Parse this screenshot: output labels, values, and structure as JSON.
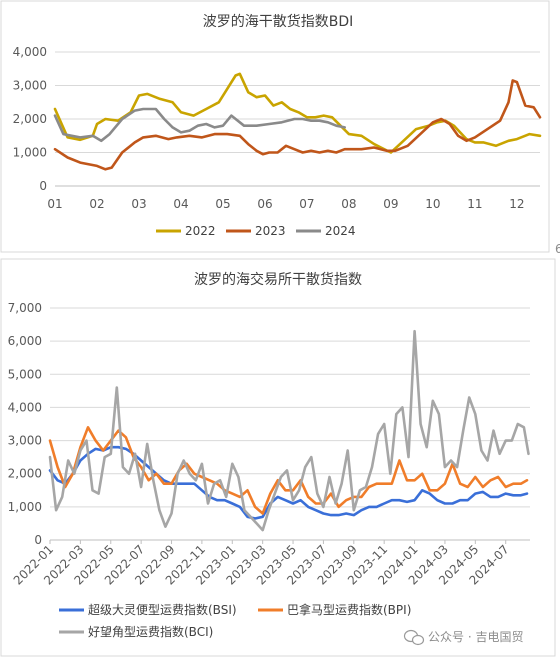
{
  "chart_data": [
    {
      "type": "line",
      "title": "波罗的海干散货指数BDI",
      "ylim": [
        0,
        4000
      ],
      "yticks": [
        "0",
        "1,000",
        "2,000",
        "3,000",
        "4,000"
      ],
      "xticks": [
        "01",
        "02",
        "03",
        "04",
        "05",
        "06",
        "07",
        "08",
        "09",
        "10",
        "11",
        "12"
      ],
      "xlim": [
        1,
        12.55
      ],
      "grid": true,
      "legend": "bottom",
      "series": [
        {
          "name": "2022",
          "color": "#c9a400",
          "x": [
            1.0,
            1.3,
            1.6,
            1.9,
            2.0,
            2.2,
            2.5,
            2.8,
            3.0,
            3.2,
            3.5,
            3.8,
            4.0,
            4.3,
            4.6,
            4.9,
            5.1,
            5.3,
            5.4,
            5.6,
            5.8,
            6.0,
            6.2,
            6.4,
            6.6,
            6.8,
            7.0,
            7.2,
            7.4,
            7.6,
            7.8,
            8.0,
            8.3,
            8.6,
            9.0,
            9.3,
            9.6,
            9.9,
            10.1,
            10.3,
            10.5,
            10.8,
            11.0,
            11.2,
            11.5,
            11.8,
            12.0,
            12.3,
            12.55
          ],
          "y": [
            2300,
            1450,
            1380,
            1500,
            1850,
            2000,
            1950,
            2200,
            2700,
            2750,
            2600,
            2500,
            2200,
            2100,
            2300,
            2500,
            2900,
            3300,
            3350,
            2800,
            2650,
            2700,
            2400,
            2500,
            2300,
            2200,
            2050,
            2050,
            2100,
            2050,
            1800,
            1550,
            1500,
            1250,
            1000,
            1350,
            1700,
            1800,
            1900,
            1950,
            1800,
            1400,
            1300,
            1300,
            1200,
            1350,
            1400,
            1550,
            1500
          ]
        },
        {
          "name": "2023",
          "color": "#c0561a",
          "x": [
            1.0,
            1.3,
            1.6,
            2.0,
            2.2,
            2.35,
            2.6,
            2.9,
            3.1,
            3.4,
            3.7,
            3.9,
            4.2,
            4.5,
            4.8,
            5.1,
            5.4,
            5.6,
            5.8,
            5.95,
            6.1,
            6.3,
            6.5,
            6.7,
            6.9,
            7.1,
            7.3,
            7.5,
            7.7,
            7.9,
            8.1,
            8.3,
            8.6,
            8.9,
            9.1,
            9.4,
            9.7,
            10.0,
            10.2,
            10.4,
            10.6,
            10.8,
            11.0,
            11.3,
            11.6,
            11.8,
            11.9,
            12.0,
            12.2,
            12.4,
            12.55
          ],
          "y": [
            1100,
            850,
            700,
            600,
            500,
            550,
            1000,
            1300,
            1450,
            1500,
            1400,
            1450,
            1500,
            1450,
            1550,
            1550,
            1500,
            1250,
            1050,
            950,
            1000,
            1000,
            1200,
            1100,
            1000,
            1050,
            1000,
            1050,
            1000,
            1100,
            1100,
            1100,
            1150,
            1050,
            1050,
            1200,
            1550,
            1900,
            2000,
            1850,
            1500,
            1350,
            1450,
            1700,
            1950,
            2500,
            3150,
            3100,
            2400,
            2350,
            2050
          ]
        },
        {
          "name": "2024",
          "color": "#8a8a8a",
          "x": [
            1.0,
            1.2,
            1.4,
            1.6,
            1.9,
            2.1,
            2.3,
            2.6,
            2.9,
            3.1,
            3.4,
            3.6,
            3.8,
            4.0,
            4.2,
            4.4,
            4.6,
            4.8,
            5.0,
            5.2,
            5.5,
            5.8,
            6.1,
            6.4,
            6.7,
            6.9,
            7.1,
            7.3,
            7.5,
            7.7,
            7.9
          ],
          "y": [
            2100,
            1550,
            1500,
            1450,
            1500,
            1350,
            1550,
            2000,
            2250,
            2300,
            2300,
            2000,
            1750,
            1600,
            1650,
            1800,
            1850,
            1750,
            1800,
            2100,
            1800,
            1800,
            1850,
            1900,
            2000,
            2000,
            1950,
            1950,
            1900,
            1800,
            1750
          ]
        }
      ]
    },
    {
      "type": "line",
      "title": "波罗的海交易所干散货指数",
      "ylim": [
        0,
        7000
      ],
      "yticks": [
        "0",
        "1,000",
        "2,000",
        "3,000",
        "4,000",
        "5,000",
        "6,000",
        "7,000"
      ],
      "xticks": [
        "2022-01",
        "2022-03",
        "2022-05",
        "2022-07",
        "2022-09",
        "2022-11",
        "2023-01",
        "2023-03",
        "2023-05",
        "2023-07",
        "2023-09",
        "2023-11",
        "2024-01",
        "2024-03",
        "2024-05",
        "2024-07"
      ],
      "xlim": [
        0,
        31.6
      ],
      "grid": true,
      "legend": "bottom",
      "series": [
        {
          "name": "超级大灵便型运费指数(BSI)",
          "color": "#3a6fd8",
          "x": [
            0,
            0.5,
            1,
            1.5,
            2,
            2.5,
            3,
            3.5,
            4,
            4.5,
            5,
            5.5,
            6,
            6.5,
            7,
            7.5,
            8,
            8.5,
            9,
            9.5,
            10,
            10.5,
            11,
            11.5,
            12,
            12.5,
            13,
            13.5,
            14,
            14.5,
            15,
            15.5,
            16,
            16.5,
            17,
            17.5,
            18,
            18.5,
            19,
            19.5,
            20,
            20.5,
            21,
            21.5,
            22,
            22.5,
            23,
            23.5,
            24,
            24.5,
            25,
            25.5,
            26,
            26.5,
            27,
            27.5,
            28,
            28.5,
            29,
            29.5,
            30,
            30.5,
            31,
            31.4
          ],
          "y": [
            2100,
            1800,
            1700,
            2000,
            2400,
            2600,
            2750,
            2700,
            2800,
            2800,
            2750,
            2600,
            2400,
            2200,
            2000,
            1800,
            1700,
            1700,
            1700,
            1700,
            1500,
            1300,
            1200,
            1200,
            1100,
            1000,
            700,
            650,
            700,
            1100,
            1300,
            1200,
            1100,
            1200,
            1000,
            900,
            800,
            750,
            750,
            800,
            750,
            900,
            1000,
            1000,
            1100,
            1200,
            1200,
            1150,
            1200,
            1500,
            1400,
            1200,
            1100,
            1100,
            1200,
            1200,
            1400,
            1450,
            1300,
            1300,
            1400,
            1350,
            1350,
            1400
          ]
        },
        {
          "name": "巴拿马型运费指数(BPI)",
          "color": "#f07d2a",
          "x": [
            0,
            0.5,
            1,
            1.5,
            2,
            2.5,
            3,
            3.5,
            4,
            4.5,
            5,
            5.5,
            6,
            6.5,
            7,
            7.5,
            8,
            8.5,
            9,
            9.5,
            10,
            10.5,
            11,
            11.5,
            12,
            12.5,
            13,
            13.5,
            14,
            14.5,
            15,
            15.5,
            16,
            16.5,
            17,
            17.5,
            18,
            18.5,
            19,
            19.5,
            20,
            20.5,
            21,
            21.5,
            22,
            22.5,
            23,
            23.5,
            24,
            24.5,
            25,
            25.5,
            26,
            26.5,
            27,
            27.5,
            28,
            28.5,
            29,
            29.5,
            30,
            30.5,
            31,
            31.4
          ],
          "y": [
            3000,
            2200,
            1600,
            2000,
            2800,
            3400,
            3000,
            2700,
            3000,
            3300,
            3100,
            2500,
            2200,
            1800,
            2000,
            1700,
            1700,
            2100,
            2300,
            2000,
            1900,
            1800,
            1700,
            1500,
            1400,
            1300,
            1500,
            1000,
            800,
            1400,
            1800,
            1500,
            1500,
            1800,
            1300,
            1100,
            1100,
            1400,
            1000,
            1200,
            1300,
            1300,
            1600,
            1700,
            1700,
            1700,
            2400,
            1800,
            1800,
            2000,
            1500,
            1500,
            1700,
            2300,
            1700,
            1600,
            1900,
            1600,
            1800,
            1900,
            1600,
            1700,
            1700,
            1800
          ]
        },
        {
          "name": "好望角型运费指数(BCI)",
          "color": "#a6a6a6",
          "x": [
            0,
            0.4,
            0.8,
            1.2,
            1.6,
            2,
            2.4,
            2.8,
            3.2,
            3.6,
            4,
            4.4,
            4.8,
            5.2,
            5.6,
            6,
            6.4,
            6.8,
            7.2,
            7.6,
            8,
            8.4,
            8.8,
            9.2,
            9.6,
            10,
            10.4,
            10.8,
            11.2,
            11.6,
            12,
            12.4,
            12.8,
            13.2,
            13.6,
            14,
            14.4,
            14.8,
            15.2,
            15.6,
            16,
            16.4,
            16.8,
            17.2,
            17.6,
            18,
            18.4,
            18.8,
            19.2,
            19.6,
            20,
            20.4,
            20.8,
            21.2,
            21.6,
            22,
            22.4,
            22.8,
            23.2,
            23.6,
            24,
            24.4,
            24.8,
            25.2,
            25.6,
            26,
            26.4,
            26.8,
            27.2,
            27.6,
            28,
            28.4,
            28.8,
            29.2,
            29.6,
            30,
            30.4,
            30.8,
            31.2,
            31.5
          ],
          "y": [
            2500,
            900,
            1300,
            2400,
            2000,
            2700,
            3000,
            1500,
            1400,
            2500,
            2600,
            4600,
            2200,
            2000,
            2600,
            1600,
            2900,
            1800,
            900,
            400,
            800,
            2000,
            2400,
            2000,
            1800,
            2300,
            1100,
            1700,
            1800,
            1300,
            2300,
            1900,
            900,
            700,
            500,
            300,
            900,
            1400,
            1900,
            2100,
            1200,
            1500,
            2200,
            2500,
            1400,
            1000,
            1900,
            1100,
            1700,
            2700,
            900,
            1500,
            1600,
            2200,
            3200,
            3500,
            2000,
            3800,
            4000,
            2500,
            6300,
            3500,
            2800,
            4200,
            3800,
            2200,
            2400,
            2200,
            3300,
            4300,
            3800,
            2700,
            2400,
            3300,
            2600,
            3000,
            3000,
            3500,
            3400,
            2600
          ]
        }
      ]
    }
  ],
  "watermark": "公众号 · 吉电国贸",
  "edge_mark": "6"
}
